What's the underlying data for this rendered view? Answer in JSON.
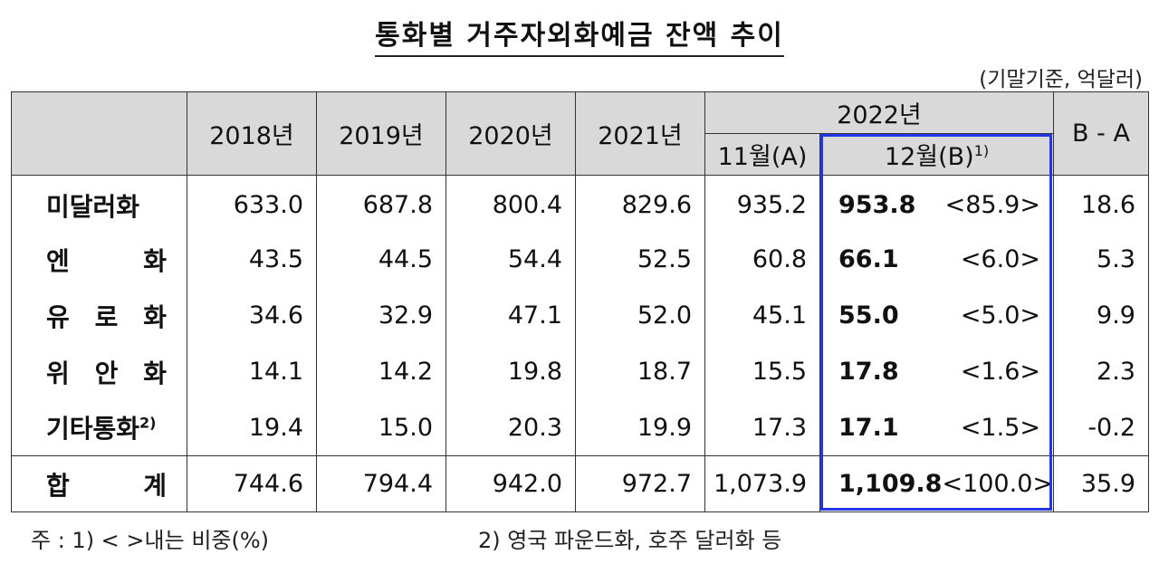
{
  "title": "통화별 거주자외화예금 잔액 추이",
  "unit": "(기말기준, 억달러)",
  "header": {
    "years": [
      "2018년",
      "2019년",
      "2020년",
      "2021년"
    ],
    "year2022": "2022년",
    "nov": "11월(A)",
    "dec": "12월(B)",
    "dec_sup": "1)",
    "diff": "B - A"
  },
  "rows": [
    {
      "label": "미달러화",
      "sup": "",
      "v": [
        "633.0",
        "687.8",
        "800.4",
        "829.6",
        "935.2"
      ],
      "dec": "953.8",
      "share": "<85.9>",
      "diff": "18.6"
    },
    {
      "label": "엔 화",
      "sup": "",
      "v": [
        "43.5",
        "44.5",
        "54.4",
        "52.5",
        "60.8"
      ],
      "dec": "66.1",
      "share": "<6.0>",
      "diff": "5.3"
    },
    {
      "label": "유 로 화",
      "sup": "",
      "v": [
        "34.6",
        "32.9",
        "47.1",
        "52.0",
        "45.1"
      ],
      "dec": "55.0",
      "share": "<5.0>",
      "diff": "9.9"
    },
    {
      "label": "위 안 화",
      "sup": "",
      "v": [
        "14.1",
        "14.2",
        "19.8",
        "18.7",
        "15.5"
      ],
      "dec": "17.8",
      "share": "<1.6>",
      "diff": "2.3"
    },
    {
      "label": "기타통화",
      "sup": "2)",
      "v": [
        "19.4",
        "15.0",
        "20.3",
        "19.9",
        "17.3"
      ],
      "dec": "17.1",
      "share": "<1.5>",
      "diff": "-0.2"
    }
  ],
  "total": {
    "label": "합 계",
    "v": [
      "744.6",
      "794.4",
      "942.0",
      "972.7",
      "1,073.9"
    ],
    "dec": "1,109.8",
    "share": "<100.0>",
    "diff": "35.9"
  },
  "notes": {
    "note1": "주 : 1) <    >내는 비중(%)",
    "note2": "2) 영국 파운드화, 호주 달러화 등"
  },
  "colors": {
    "highlight_box": "#2236e8",
    "header_bg": "#d9d9d9"
  }
}
